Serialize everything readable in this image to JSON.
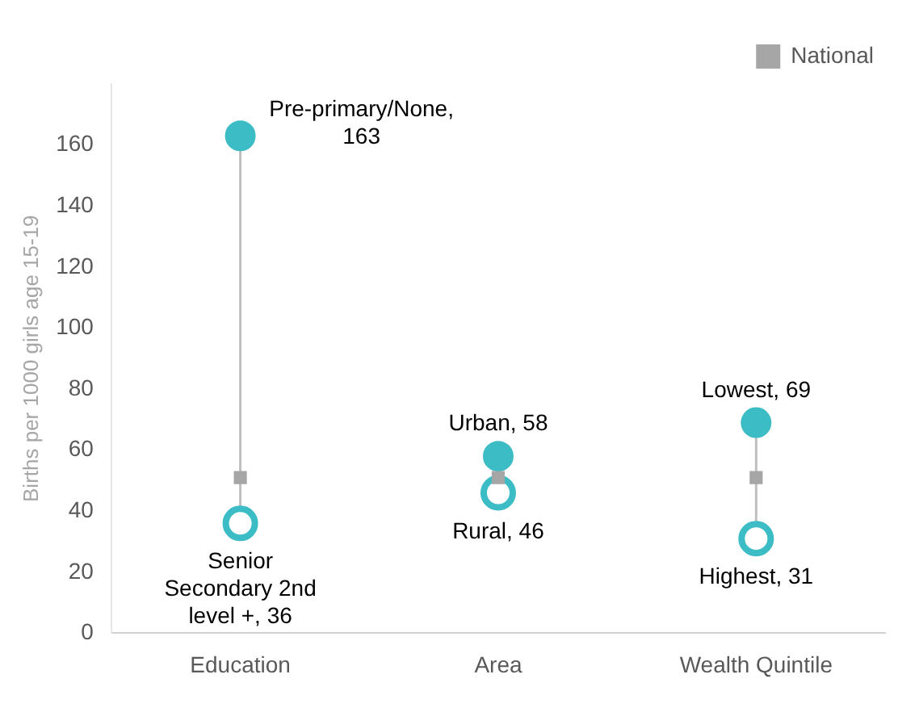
{
  "chart_data": {
    "type": "scatter",
    "ylabel": "Births per 1000 girls age 15-19",
    "categories": [
      "Education",
      "Area",
      "Wealth Quintile"
    ],
    "series": [
      {
        "color": "#3cbcc4",
        "values": [
          163,
          58,
          69
        ],
        "marker": "circle"
      },
      {
        "color": "#3cbcc4",
        "values": [
          36,
          46,
          31
        ],
        "marker": "circle"
      },
      {
        "name": "National",
        "color": "#a6a6a6",
        "values": [
          51,
          51,
          51
        ],
        "marker": "square"
      }
    ],
    "ylim": [
      0,
      180
    ],
    "yticks": [
      0,
      20,
      40,
      60,
      80,
      100,
      120,
      140,
      160
    ],
    "legend": "top right",
    "annotations": [
      {
        "text": "Pre-primary/None, 163",
        "x": "Education",
        "y": 163
      },
      {
        "text": "Senior Secondary 2nd level +, 36",
        "x": "Education",
        "y": 36
      },
      {
        "text": "Urban, 58",
        "x": "Area",
        "y": 58
      },
      {
        "text": "Rural, 46",
        "x": "Area",
        "y": 46
      },
      {
        "text": "Lowest, 69",
        "x": "Wealth Quintile",
        "y": 69
      },
      {
        "text": "Highest, 31",
        "x": "Wealth Quintile",
        "y": 31
      }
    ]
  }
}
